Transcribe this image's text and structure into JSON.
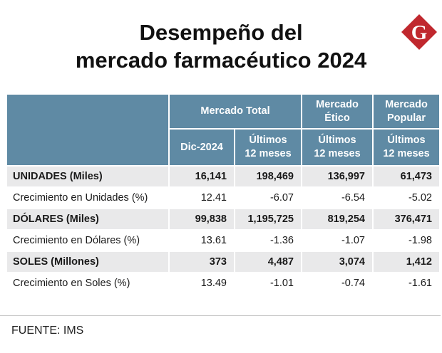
{
  "title": {
    "line1": "Desempeño del",
    "line2": "mercado farmacéutico 2024"
  },
  "logo": {
    "letter": "G",
    "color": "#c0282e",
    "label": "logo-g"
  },
  "table": {
    "group_headers": {
      "total": "Mercado Total",
      "etico_line1": "Mercado",
      "etico_line2": "Ético",
      "popular_line1": "Mercado",
      "popular_line2": "Popular"
    },
    "sub_headers": {
      "dic": "Dic-2024",
      "ultimos_line1": "Últimos",
      "ultimos_line2": "12 meses"
    },
    "rows": [
      {
        "label": "UNIDADES (Miles)",
        "values": [
          "16,141",
          "198,469",
          "136,997",
          "61,473"
        ]
      },
      {
        "label": "Crecimiento en Unidades (%)",
        "values": [
          "12.41",
          "-6.07",
          "-6.54",
          "-5.02"
        ]
      },
      {
        "label": "DÓLARES (Miles)",
        "values": [
          "99,838",
          "1,195,725",
          "819,254",
          "376,471"
        ]
      },
      {
        "label": "Crecimiento en Dólares (%)",
        "values": [
          "13.61",
          "-1.36",
          "-1.07",
          "-1.98"
        ]
      },
      {
        "label": "SOLES (Millones)",
        "values": [
          "373",
          "4,487",
          "3,074",
          "1,412"
        ]
      },
      {
        "label": "Crecimiento en Soles (%)",
        "values": [
          "13.49",
          "-1.01",
          "-0.74",
          "-1.61"
        ]
      }
    ]
  },
  "colors": {
    "header": "#5f8aa4",
    "shade": "#e9e9ea",
    "accent": "#c0282e"
  },
  "source": "FUENTE: IMS"
}
